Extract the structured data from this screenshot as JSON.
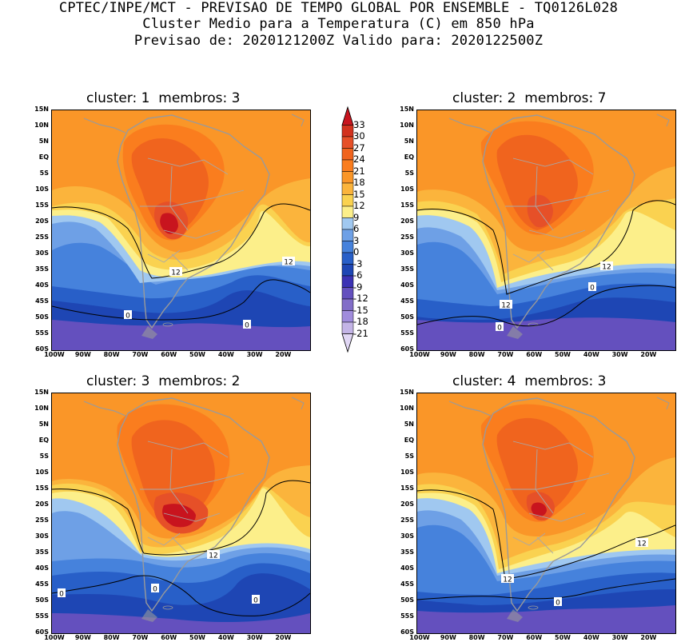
{
  "header": {
    "line1": "CPTEC/INPE/MCT - PREVISAO DE TEMPO GLOBAL POR ENSEMBLE - TQ0126L028",
    "line2": "Cluster Medio para a Temperatura (C) em 850 hPa",
    "line3": "Previsao de: 2020121200Z   Valido para: 2020122500Z"
  },
  "panels": [
    {
      "title": "cluster: 1  membros: 3",
      "contour_labels": [
        "12",
        "12",
        "0",
        "0"
      ]
    },
    {
      "title": "cluster: 2  membros: 7",
      "contour_labels": [
        "12",
        "12",
        "0",
        "0"
      ]
    },
    {
      "title": "cluster: 3  membros: 2",
      "contour_labels": [
        "12",
        "0",
        "0",
        "0"
      ]
    },
    {
      "title": "cluster: 4  membros: 3",
      "contour_labels": [
        "12",
        "12",
        "0"
      ]
    }
  ],
  "lat_labels": [
    "15N",
    "10N",
    "5N",
    "EQ",
    "5S",
    "10S",
    "15S",
    "20S",
    "25S",
    "30S",
    "35S",
    "40S",
    "45S",
    "50S",
    "55S",
    "60S"
  ],
  "lon_labels": [
    "100W",
    "90W",
    "80W",
    "70W",
    "60W",
    "50W",
    "40W",
    "30W",
    "20W"
  ],
  "colorbar": {
    "levels": [
      "33",
      "30",
      "27",
      "24",
      "21",
      "18",
      "15",
      "12",
      "9",
      "6",
      "3",
      "0",
      "-3",
      "-6",
      "-9",
      "-12",
      "-15",
      "-18",
      "-21"
    ],
    "colors": [
      "#c8141e",
      "#d2321e",
      "#e65028",
      "#f0641e",
      "#fa7d1e",
      "#fa9628",
      "#fbb43c",
      "#fad250",
      "#fcef8a",
      "#a0c8f0",
      "#6ea0e6",
      "#4682dc",
      "#285fc8",
      "#1e46b4",
      "#3c32b4",
      "#6450be",
      "#826ec8",
      "#a08cdc",
      "#c3b4e6",
      "#e1d7f5"
    ]
  },
  "colors": {
    "ocean_warm": "#fa9628",
    "land_gray": "#a0a0a0"
  }
}
